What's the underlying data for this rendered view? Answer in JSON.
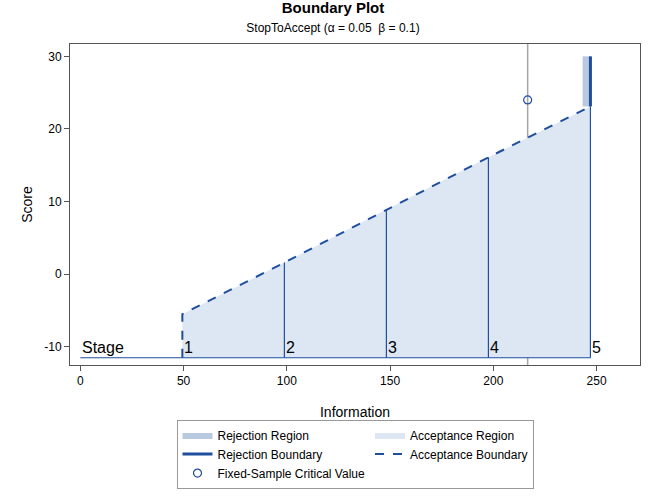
{
  "chart_data": {
    "type": "boundary",
    "title": "Boundary Plot",
    "subtitle": "StopToAccept (α = 0.05  β = 0.1)",
    "x_label": "Information",
    "y_label": "Score",
    "xlim": [
      -5,
      271
    ],
    "ylim": [
      -12.5,
      31.7
    ],
    "xticks": [
      0,
      50,
      100,
      150,
      200,
      250
    ],
    "yticks": [
      -10,
      0,
      10,
      20,
      30
    ],
    "legend": "bottom",
    "stage_label": "Stage",
    "stages": [
      1,
      2,
      3,
      4,
      5
    ],
    "stage_baseline": -11.5,
    "series": [
      {
        "name": "Rejection Region",
        "type": "region",
        "color": "#b9c9e0",
        "x": [
          243.2,
          247
        ],
        "values": [
          23.1,
          30
        ]
      },
      {
        "name": "Acceptance Region",
        "type": "region",
        "color": "#dde7f3"
      },
      {
        "name": "Rejection Boundary",
        "type": "line",
        "line_style": "solid",
        "color": "#1f4e9e",
        "x": [
          247,
          247
        ],
        "values": [
          23.1,
          30
        ]
      },
      {
        "name": "Acceptance Boundary",
        "type": "line",
        "line_style": "dash",
        "color": "#1f4e9e",
        "x": [
          49.4,
          98.8,
          148.2,
          197.6,
          247
        ],
        "values": [
          -5.5,
          1.6,
          8.9,
          16.1,
          23.1
        ]
      },
      {
        "name": "Fixed-Sample Critical Value",
        "type": "scatter",
        "marker": "circle-open",
        "color": "#1f4e9e",
        "x": [
          216.6
        ],
        "values": [
          24.0
        ]
      }
    ]
  }
}
